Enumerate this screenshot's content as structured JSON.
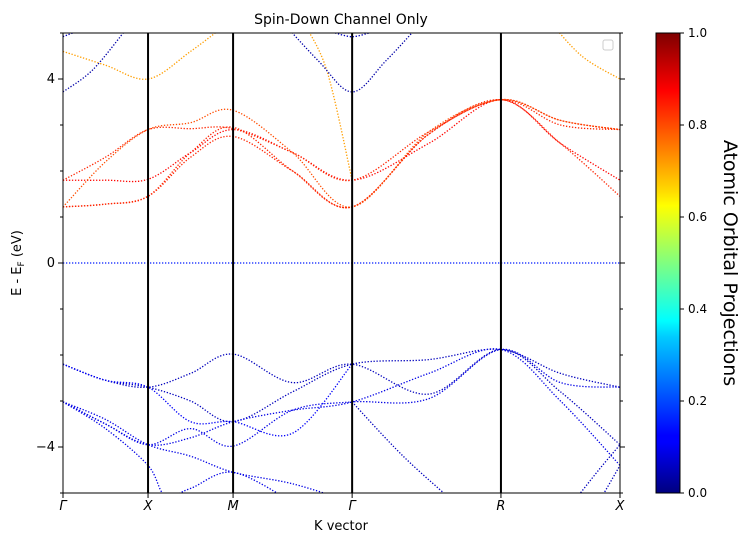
{
  "chart_data": {
    "type": "line",
    "title": "Spin-Down Channel Only",
    "xlabel": "K vector",
    "ylabel": "E - E_F (eV)",
    "ylabel_parts": {
      "main": "E - E",
      "sub": "F",
      "unit": " (eV)"
    },
    "ylim": [
      -5,
      5
    ],
    "yticks": [
      4,
      0,
      -4
    ],
    "ytick_labels": [
      "4",
      "0",
      "−4"
    ],
    "kpoints": [
      "Γ",
      "X",
      "M",
      "Γ",
      "R",
      "X"
    ],
    "kpoint_positions": [
      0,
      1,
      2,
      3.4,
      5.15,
      6.55
    ],
    "colorbar": {
      "label": "Atomic Orbital Projections",
      "colormap": "jet",
      "range": [
        0.0,
        1.0
      ],
      "ticks": [
        "0.0",
        "0.2",
        "0.4",
        "0.6",
        "0.8",
        "1.0"
      ]
    },
    "legend": {
      "placement": "top-right",
      "entries": []
    },
    "fermi_level": {
      "energy": 0,
      "projection": 0.15
    },
    "series": [
      {
        "projection": 0.84,
        "points": [
          [
            0,
            1.22
          ],
          [
            0.5,
            1.28
          ],
          [
            1,
            1.45
          ],
          [
            1.5,
            2.4
          ],
          [
            2,
            2.95
          ],
          [
            2.7,
            2.0
          ],
          [
            3.4,
            1.22
          ],
          [
            4.3,
            2.8
          ],
          [
            5.15,
            3.55
          ],
          [
            5.85,
            2.6
          ],
          [
            6.55,
            1.45
          ]
        ]
      },
      {
        "projection": 0.84,
        "points": [
          [
            0,
            1.22
          ],
          [
            0.5,
            1.28
          ],
          [
            1,
            1.45
          ],
          [
            1.5,
            2.3
          ],
          [
            2,
            2.75
          ],
          [
            2.7,
            2.0
          ],
          [
            3.4,
            1.22
          ],
          [
            4.3,
            2.8
          ],
          [
            5.15,
            3.55
          ],
          [
            5.85,
            3.1
          ],
          [
            6.55,
            2.9
          ]
        ]
      },
      {
        "projection": 0.87,
        "points": [
          [
            0,
            1.8
          ],
          [
            0.5,
            1.8
          ],
          [
            1,
            1.82
          ],
          [
            1.5,
            2.4
          ],
          [
            2,
            2.9
          ],
          [
            2.7,
            2.4
          ],
          [
            3.4,
            1.8
          ],
          [
            4.3,
            2.6
          ],
          [
            5.15,
            3.55
          ],
          [
            5.85,
            2.6
          ],
          [
            6.55,
            1.8
          ]
        ]
      },
      {
        "projection": 0.84,
        "points": [
          [
            0,
            1.8
          ],
          [
            0.5,
            2.3
          ],
          [
            1,
            2.9
          ],
          [
            1.5,
            2.92
          ],
          [
            2,
            2.92
          ],
          [
            2.7,
            2.4
          ],
          [
            3.4,
            1.8
          ],
          [
            4.3,
            2.85
          ],
          [
            5.15,
            3.55
          ],
          [
            5.85,
            3.0
          ],
          [
            6.55,
            2.9
          ]
        ]
      },
      {
        "projection": 0.8,
        "points": [
          [
            0,
            1.22
          ],
          [
            0.5,
            2.2
          ],
          [
            1,
            2.9
          ],
          [
            1.5,
            3.05
          ],
          [
            2,
            3.32
          ],
          [
            2.7,
            2.4
          ],
          [
            3.4,
            1.22
          ],
          [
            4.3,
            2.85
          ],
          [
            5.15,
            3.55
          ],
          [
            5.85,
            3.1
          ],
          [
            6.55,
            2.9
          ]
        ]
      },
      {
        "projection": 0.72,
        "points": [
          [
            0,
            4.6
          ],
          [
            0.5,
            4.3
          ],
          [
            1,
            4.0
          ],
          [
            1.5,
            4.6
          ],
          [
            2,
            5.3
          ]
        ]
      },
      {
        "projection": 0.72,
        "points": [
          [
            2.8,
            5.3
          ],
          [
            3.1,
            4.2
          ],
          [
            3.4,
            1.8
          ]
        ]
      },
      {
        "projection": 0.72,
        "points": [
          [
            5.7,
            5.3
          ],
          [
            6.1,
            4.5
          ],
          [
            6.55,
            4.0
          ]
        ]
      },
      {
        "projection": 0.04,
        "points": [
          [
            0,
            3.72
          ],
          [
            0.35,
            4.2
          ],
          [
            0.75,
            5.1
          ]
        ]
      },
      {
        "projection": 0.04,
        "points": [
          [
            2.55,
            5.3
          ],
          [
            3.0,
            4.4
          ],
          [
            3.4,
            3.72
          ],
          [
            3.8,
            4.4
          ],
          [
            4.25,
            5.3
          ]
        ]
      },
      {
        "projection": 0.06,
        "points": [
          [
            0,
            4.92
          ],
          [
            0.25,
            5.1
          ]
        ]
      },
      {
        "projection": 0.06,
        "points": [
          [
            3.2,
            5.0
          ],
          [
            3.4,
            4.92
          ],
          [
            3.6,
            5.0
          ]
        ]
      },
      {
        "projection": 0.06,
        "points": [
          [
            0,
            -2.2
          ],
          [
            0.5,
            -2.55
          ],
          [
            1,
            -2.7
          ],
          [
            1.5,
            -3.0
          ],
          [
            2,
            -3.45
          ],
          [
            2.7,
            -2.8
          ],
          [
            3.4,
            -2.2
          ],
          [
            4.3,
            -2.1
          ],
          [
            5.15,
            -1.88
          ],
          [
            5.85,
            -2.4
          ],
          [
            6.55,
            -2.7
          ]
        ]
      },
      {
        "projection": 0.06,
        "points": [
          [
            0,
            -2.2
          ],
          [
            0.5,
            -2.55
          ],
          [
            1,
            -2.7
          ],
          [
            1.5,
            -2.4
          ],
          [
            2,
            -1.98
          ],
          [
            2.7,
            -2.6
          ],
          [
            3.4,
            -2.2
          ],
          [
            4.3,
            -2.85
          ],
          [
            5.15,
            -1.88
          ],
          [
            5.85,
            -2.8
          ],
          [
            6.55,
            -3.95
          ]
        ]
      },
      {
        "projection": 0.1,
        "points": [
          [
            0,
            -3.02
          ],
          [
            0.5,
            -3.5
          ],
          [
            1,
            -3.95
          ],
          [
            1.5,
            -3.8
          ],
          [
            2,
            -3.45
          ],
          [
            2.7,
            -3.2
          ],
          [
            3.4,
            -3.02
          ],
          [
            4.3,
            -2.4
          ],
          [
            5.15,
            -1.88
          ],
          [
            5.85,
            -3.0
          ],
          [
            6.55,
            -4.4
          ]
        ]
      },
      {
        "projection": 0.1,
        "points": [
          [
            0,
            -3.02
          ],
          [
            0.5,
            -3.5
          ],
          [
            1,
            -3.95
          ],
          [
            1.5,
            -3.6
          ],
          [
            2,
            -3.98
          ],
          [
            2.7,
            -3.2
          ],
          [
            3.4,
            -3.02
          ],
          [
            4.3,
            -2.95
          ],
          [
            5.15,
            -1.88
          ],
          [
            5.85,
            -2.6
          ],
          [
            6.55,
            -2.7
          ]
        ]
      },
      {
        "projection": 0.12,
        "points": [
          [
            0,
            -2.2
          ],
          [
            0.5,
            -2.55
          ],
          [
            1,
            -2.7
          ],
          [
            1.5,
            -3.45
          ],
          [
            2,
            -3.45
          ],
          [
            2.7,
            -3.7
          ],
          [
            3.4,
            -2.2
          ]
        ]
      },
      {
        "projection": 0.1,
        "points": [
          [
            0,
            -3.02
          ],
          [
            0.5,
            -3.4
          ],
          [
            1,
            -3.95
          ],
          [
            1.5,
            -4.2
          ],
          [
            2,
            -4.55
          ],
          [
            2.7,
            -4.8
          ],
          [
            3.4,
            -5.2
          ]
        ]
      },
      {
        "projection": 0.1,
        "points": [
          [
            0,
            -3.02
          ],
          [
            0.5,
            -3.6
          ],
          [
            1,
            -4.4
          ],
          [
            1.2,
            -5.05
          ],
          [
            1.5,
            -4.9
          ],
          [
            2,
            -4.55
          ],
          [
            2.7,
            -5.2
          ]
        ]
      },
      {
        "projection": 0.06,
        "points": [
          [
            3.4,
            -3.02
          ],
          [
            4.0,
            -4.2
          ],
          [
            4.6,
            -5.2
          ]
        ]
      },
      {
        "projection": 0.06,
        "points": [
          [
            6.0,
            -5.2
          ],
          [
            6.3,
            -4.5
          ],
          [
            6.55,
            -3.95
          ]
        ]
      },
      {
        "projection": 0.06,
        "points": [
          [
            6.3,
            -5.2
          ],
          [
            6.55,
            -4.4
          ]
        ]
      }
    ]
  }
}
